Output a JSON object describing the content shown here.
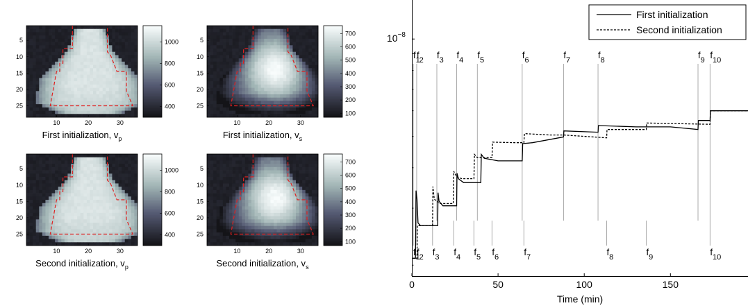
{
  "panels": [
    {
      "caption": "First initialization, v",
      "sub": "p",
      "colorbar_ticks": [
        "1000",
        "800",
        "600",
        "400"
      ],
      "cmax": 1150,
      "cmin": 300,
      "variant": "vp1"
    },
    {
      "caption": "First initialization, v",
      "sub": "s",
      "colorbar_ticks": [
        "700",
        "600",
        "500",
        "400",
        "300",
        "200",
        "100"
      ],
      "cmax": 760,
      "cmin": 70,
      "variant": "vs1"
    },
    {
      "caption": "Second initialization, v",
      "sub": "p",
      "colorbar_ticks": [
        "1000",
        "800",
        "600",
        "400"
      ],
      "cmax": 1150,
      "cmin": 300,
      "variant": "vp2"
    },
    {
      "caption": "Second initialization, v",
      "sub": "s",
      "colorbar_ticks": [
        "700",
        "600",
        "500",
        "400",
        "300",
        "200",
        "100"
      ],
      "cmax": 760,
      "cmin": 70,
      "variant": "vs2"
    }
  ],
  "heatmap_axes": {
    "yticks": [
      "5",
      "10",
      "15",
      "20",
      "25"
    ],
    "xticks": [
      "10",
      "20",
      "30"
    ]
  },
  "chart_data": [
    {
      "type": "heatmap",
      "title": "First initialization, v_p",
      "colorbar": {
        "min": 300,
        "max": 1150,
        "ticks": [
          1000,
          800,
          600,
          400
        ]
      },
      "grid_size": [
        28,
        35
      ],
      "outline_color": "#e02020"
    },
    {
      "type": "heatmap",
      "title": "First initialization, v_s",
      "colorbar": {
        "min": 70,
        "max": 760,
        "ticks": [
          700,
          600,
          500,
          400,
          300,
          200,
          100
        ]
      },
      "grid_size": [
        28,
        35
      ],
      "outline_color": "#e02020"
    },
    {
      "type": "heatmap",
      "title": "Second initialization, v_p",
      "colorbar": {
        "min": 300,
        "max": 1150,
        "ticks": [
          1000,
          800,
          600,
          400
        ]
      },
      "grid_size": [
        28,
        35
      ],
      "outline_color": "#e02020"
    },
    {
      "type": "heatmap",
      "title": "Second initialization, v_s",
      "colorbar": {
        "min": 70,
        "max": 760,
        "ticks": [
          700,
          600,
          500,
          400,
          300,
          200,
          100
        ]
      },
      "grid_size": [
        28,
        35
      ],
      "outline_color": "#e02020"
    },
    {
      "type": "line",
      "xlabel": "Time (min)",
      "ylabel": "",
      "y_scale": "log",
      "y_tick_label": "10",
      "y_tick_exp": "−8",
      "xlim": [
        0,
        195
      ],
      "ylim": [
        1.85e-09,
        1.32e-08
      ],
      "xticks": [
        0,
        50,
        100,
        150
      ],
      "legend": {
        "position": "top-right",
        "entries": [
          "First initialization",
          "Second initialization"
        ]
      },
      "series": [
        {
          "name": "First initialization",
          "style": "solid",
          "points": [
            [
              1,
              2.1e-09
            ],
            [
              2.1,
              2.1e-09
            ],
            [
              2.4,
              3.4e-09
            ],
            [
              3.0,
              3.2e-09
            ],
            [
              3.6,
              2.7e-09
            ],
            [
              5,
              2.65e-09
            ],
            [
              15,
              2.65e-09
            ],
            [
              15.2,
              3.35e-09
            ],
            [
              15.8,
              3.15e-09
            ],
            [
              18,
              3.05e-09
            ],
            [
              26,
              3.05e-09
            ],
            [
              26.2,
              3.85e-09
            ],
            [
              27,
              3.7e-09
            ],
            [
              30,
              3.6e-09
            ],
            [
              40,
              3.6e-09
            ],
            [
              40.3,
              4.4e-09
            ],
            [
              42,
              4.28e-09
            ],
            [
              50,
              4.2e-09
            ],
            [
              64,
              4.2e-09
            ],
            [
              64.3,
              4.75e-09
            ],
            [
              70,
              4.78e-09
            ],
            [
              88,
              4.98e-09
            ],
            [
              88.2,
              5.2e-09
            ],
            [
              108,
              5.15e-09
            ],
            [
              108.2,
              5.4e-09
            ],
            [
              130,
              5.35e-09
            ],
            [
              150,
              5.35e-09
            ],
            [
              166,
              5.25e-09
            ],
            [
              166.2,
              5.6e-09
            ],
            [
              173,
              5.6e-09
            ],
            [
              173.2,
              6e-09
            ],
            [
              195,
              6e-09
            ]
          ]
        },
        {
          "name": "Second initialization",
          "style": "dashed",
          "points": [
            [
              0.5,
              2.1e-09
            ],
            [
              2.5,
              2.1e-09
            ],
            [
              3.0,
              2.1e-09
            ],
            [
              3.2,
              2.65e-09
            ],
            [
              12,
              2.65e-09
            ],
            [
              12.2,
              3.5e-09
            ],
            [
              13,
              3.2e-09
            ],
            [
              16,
              3.1e-09
            ],
            [
              24,
              3.1e-09
            ],
            [
              24.3,
              3.9e-09
            ],
            [
              26,
              3.75e-09
            ],
            [
              29,
              3.7e-09
            ],
            [
              36,
              3.7e-09
            ],
            [
              36.3,
              4.4e-09
            ],
            [
              38,
              4.3e-09
            ],
            [
              45,
              4.3e-09
            ],
            [
              46.5,
              4.3e-09
            ],
            [
              46.8,
              4.8e-09
            ],
            [
              60,
              4.78e-09
            ],
            [
              65,
              4.78e-09
            ],
            [
              65.3,
              5.1e-09
            ],
            [
              80,
              5.05e-09
            ],
            [
              88,
              5.05e-09
            ],
            [
              113,
              4.95e-09
            ],
            [
              113.2,
              5.25e-09
            ],
            [
              130,
              5.25e-09
            ],
            [
              136,
              5.25e-09
            ],
            [
              136.2,
              5.5e-09
            ],
            [
              173,
              5.45e-09
            ],
            [
              173.2,
              6e-09
            ],
            [
              195,
              6e-09
            ]
          ]
        }
      ],
      "markers": [
        {
          "label": "f",
          "sub": "1",
          "t_top": 0.8,
          "t_bot": 0.8
        },
        {
          "label": "f",
          "sub": "2",
          "t_top": 2.8,
          "t_bot": 2.8
        },
        {
          "label": "f",
          "sub": "3",
          "t_top": 14.5,
          "t_bot": 12
        },
        {
          "label": "f",
          "sub": "4",
          "t_top": 26,
          "t_bot": 24.3
        },
        {
          "label": "f",
          "sub": "5",
          "t_top": 38,
          "t_bot": 36
        },
        {
          "label": "f",
          "sub": "6",
          "t_top": 64,
          "t_bot": 46.5
        },
        {
          "label": "f",
          "sub": "7",
          "t_top": 88,
          "t_bot": 65
        },
        {
          "label": "f",
          "sub": "8",
          "t_top": 108,
          "t_bot": 113
        },
        {
          "label": "f",
          "sub": "9",
          "t_top": 166,
          "t_bot": 136
        },
        {
          "label": "f",
          "sub": "10",
          "t_top": 173,
          "t_bot": 173
        }
      ]
    }
  ]
}
